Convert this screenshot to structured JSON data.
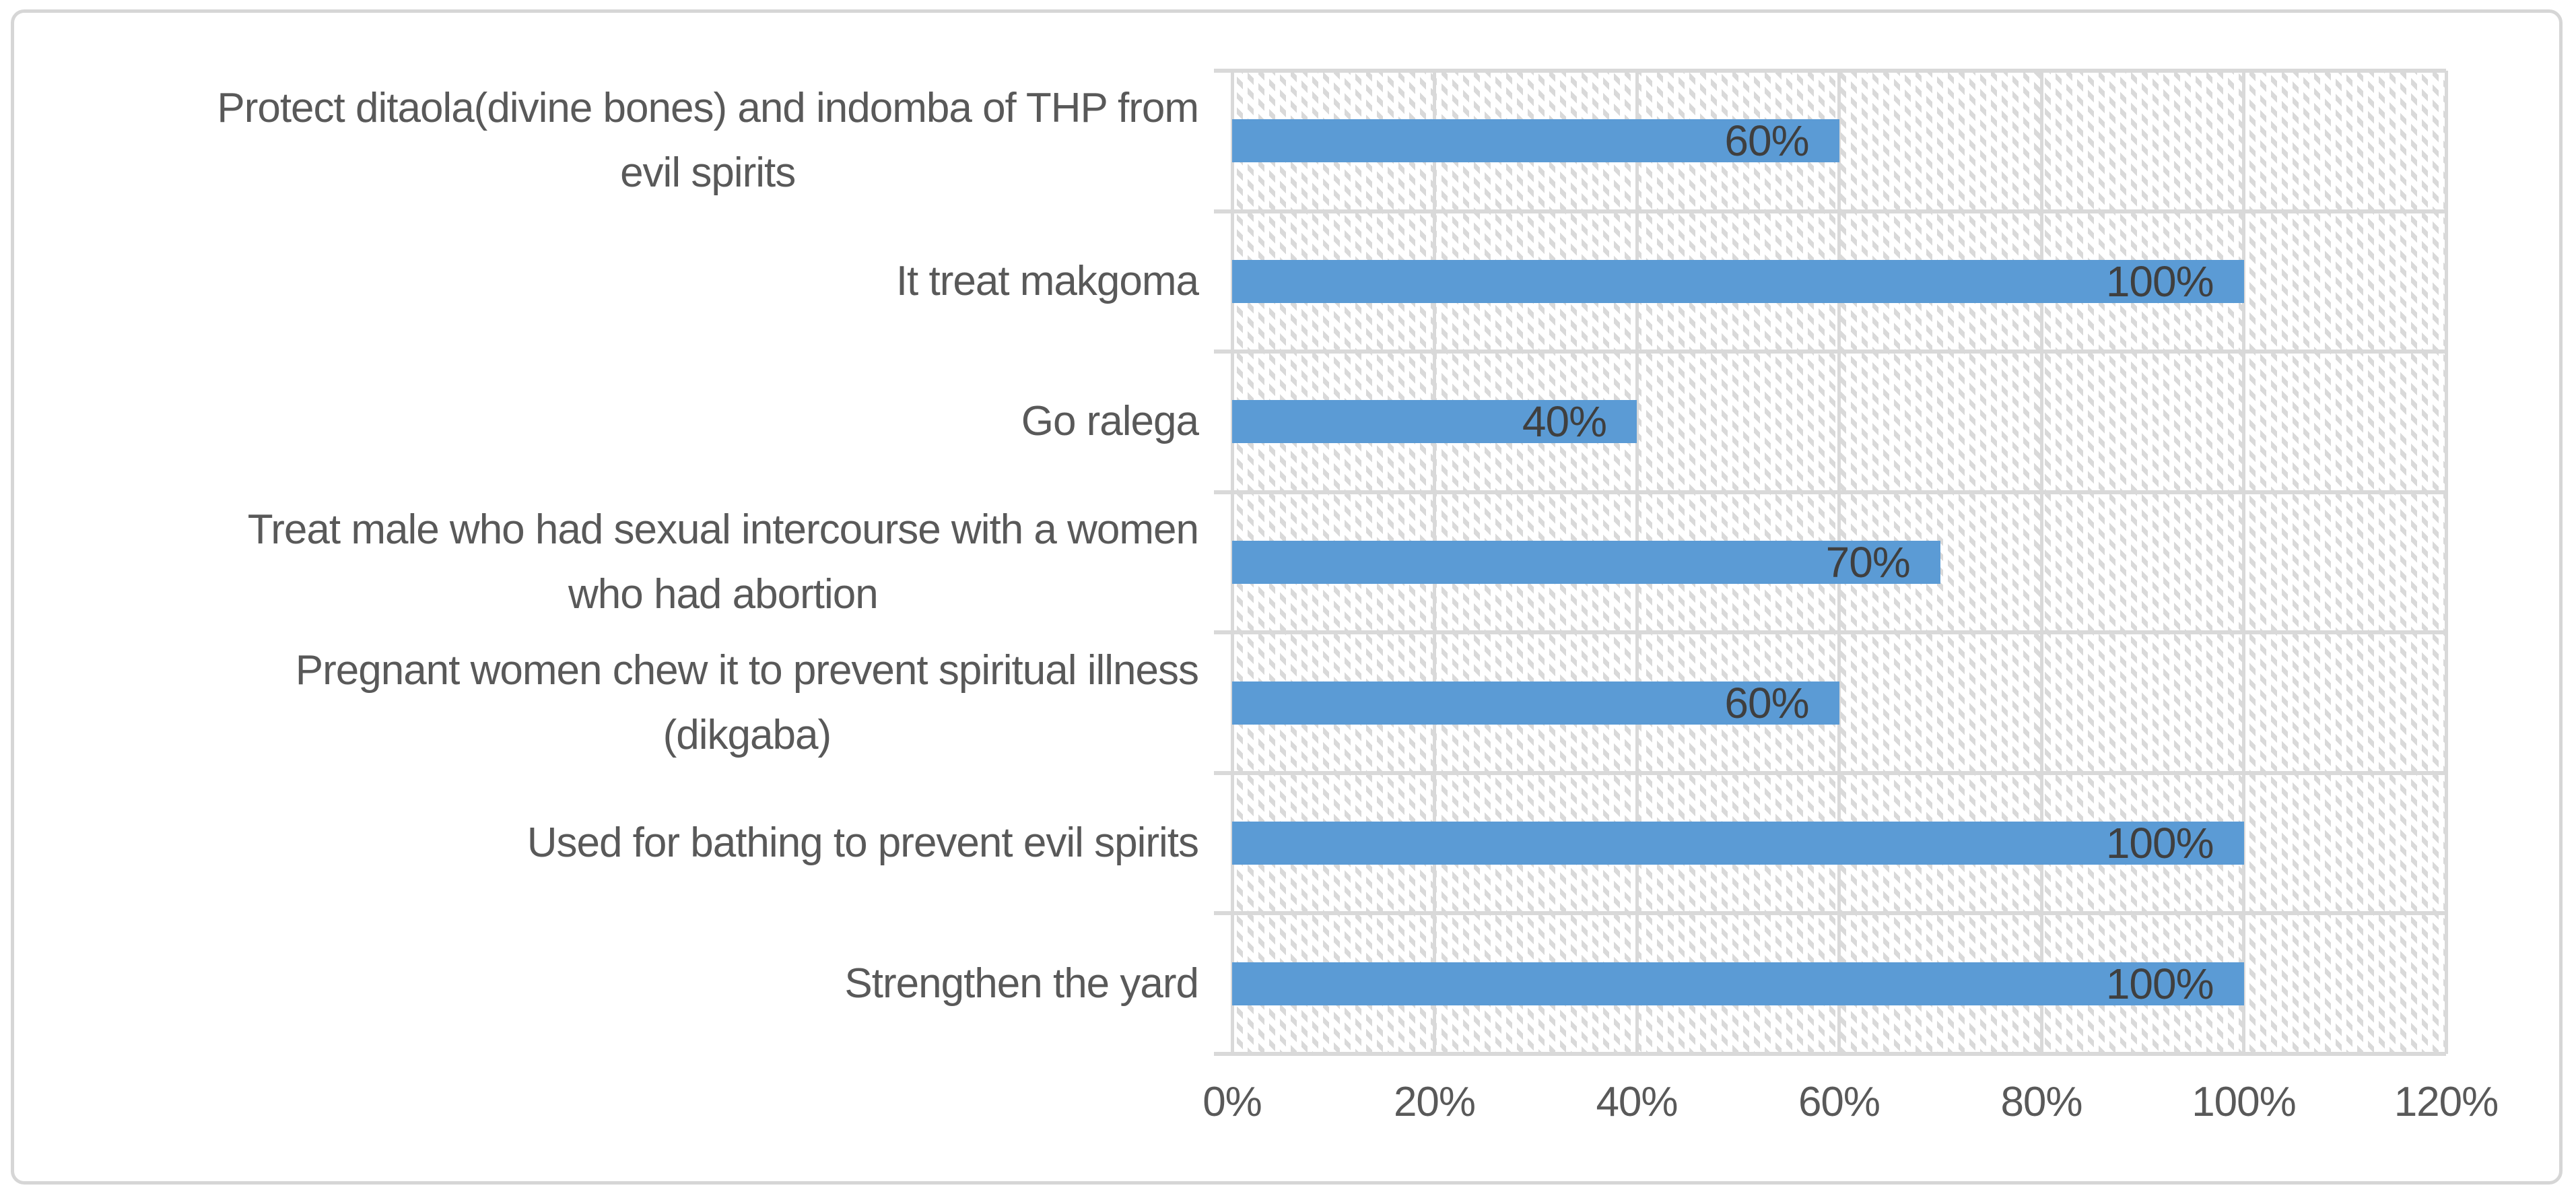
{
  "chart_data": {
    "type": "bar",
    "orientation": "horizontal",
    "title": "",
    "categories": [
      "Protect ditaola(divine bones) and indomba of THP from evil spirits",
      "It treat makgoma",
      "Go ralega",
      "Treat male who had sexual intercourse with a women who had abortion",
      "Pregnant women chew it to prevent spiritual illness (dikgaba)",
      "Used for bathing to prevent evil spirits",
      "Strengthen the yard"
    ],
    "category_lines": [
      [
        "Protect ditaola(divine bones) and indomba of THP from",
        "evil spirits"
      ],
      [
        "It treat makgoma"
      ],
      [
        "Go ralega"
      ],
      [
        "Treat male who had sexual intercourse with a women",
        "who had abortion"
      ],
      [
        "Pregnant women chew it to prevent spiritual illness",
        "(dikgaba)"
      ],
      [
        "Used for bathing to prevent evil spirits"
      ],
      [
        "Strengthen the yard"
      ]
    ],
    "values": [
      60,
      100,
      40,
      70,
      60,
      100,
      100
    ],
    "data_labels": [
      "60%",
      "100%",
      "40%",
      "70%",
      "60%",
      "100%",
      "100%"
    ],
    "x_ticks": [
      "0%",
      "20%",
      "40%",
      "60%",
      "80%",
      "100%",
      "120%"
    ],
    "xlim": [
      0,
      120
    ],
    "grid": true,
    "legend": false,
    "bar_color": "#5B9BD5",
    "data_label_color": "#3F3F3F",
    "axis_text_color": "#595959",
    "gridline_color": "#D9D9D9",
    "plot_background_pattern": "light-downward-diagonal-hatch"
  }
}
